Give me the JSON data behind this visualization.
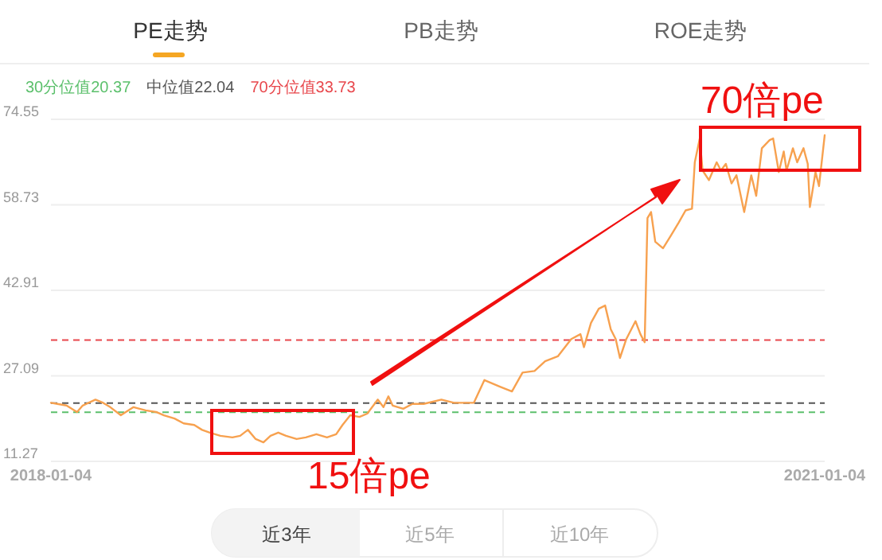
{
  "chart_data": {
    "type": "line",
    "x": [
      "2018-01-04",
      "2018-01-13",
      "2018-01-26",
      "2018-02-10",
      "2018-02-18",
      "2018-03-08",
      "2018-03-19",
      "2018-03-29",
      "2018-04-13",
      "2018-05-01",
      "2018-05-18",
      "2018-06-02",
      "2018-06-13",
      "2018-06-28",
      "2018-07-11",
      "2018-07-26",
      "2018-08-06",
      "2018-08-17",
      "2018-09-01",
      "2018-09-18",
      "2018-09-29",
      "2018-10-10",
      "2018-10-21",
      "2018-11-01",
      "2018-11-11",
      "2018-11-22",
      "2018-12-03",
      "2018-12-18",
      "2018-12-31",
      "2019-01-15",
      "2019-01-30",
      "2019-02-12",
      "2019-02-21",
      "2019-03-04",
      "2019-03-17",
      "2019-03-28",
      "2019-04-12",
      "2019-04-20",
      "2019-04-27",
      "2019-05-03",
      "2019-05-18",
      "2019-05-31",
      "2019-06-16",
      "2019-07-11",
      "2019-07-29",
      "2019-08-26",
      "2019-09-10",
      "2019-10-02",
      "2019-10-19",
      "2019-11-03",
      "2019-11-20",
      "2019-12-05",
      "2019-12-23",
      "2020-01-11",
      "2020-01-24",
      "2020-01-29",
      "2020-02-08",
      "2020-02-19",
      "2020-02-28",
      "2020-03-07",
      "2020-03-14",
      "2020-03-20",
      "2020-03-29",
      "2020-04-11",
      "2020-04-18",
      "2020-04-24",
      "2020-04-28",
      "2020-05-03",
      "2020-05-09",
      "2020-05-20",
      "2020-05-31",
      "2020-06-11",
      "2020-06-21",
      "2020-06-30",
      "2020-07-04",
      "2020-07-11",
      "2020-07-15",
      "2020-07-24",
      "2020-08-04",
      "2020-08-10",
      "2020-08-17",
      "2020-08-25",
      "2020-09-01",
      "2020-09-12",
      "2020-09-22",
      "2020-09-29",
      "2020-10-07",
      "2020-10-18",
      "2020-10-23",
      "2020-10-31",
      "2020-11-07",
      "2020-11-11",
      "2020-11-20",
      "2020-11-26",
      "2020-12-05",
      "2020-12-11",
      "2020-12-14",
      "2020-12-22",
      "2020-12-27",
      "2021-01-04"
    ],
    "series": [
      {
        "color": "#f7a14f",
        "values": [
          22.1,
          21.9,
          21.6,
          20.4,
          21.6,
          22.7,
          22.1,
          21.3,
          19.8,
          21.3,
          20.7,
          20.4,
          19.8,
          19.2,
          18.3,
          18.0,
          17.1,
          16.6,
          16.0,
          15.7,
          16.0,
          17.1,
          15.4,
          14.8,
          16.0,
          16.6,
          16.0,
          15.4,
          15.7,
          16.3,
          15.7,
          16.3,
          18.0,
          19.8,
          19.5,
          20.1,
          22.7,
          21.3,
          23.3,
          21.6,
          21.0,
          21.9,
          21.9,
          22.7,
          22.1,
          22.1,
          26.3,
          25.1,
          24.2,
          27.7,
          28.0,
          29.8,
          30.7,
          33.9,
          34.8,
          32.4,
          36.9,
          39.5,
          40.1,
          35.7,
          33.9,
          30.4,
          33.9,
          37.2,
          34.8,
          33.3,
          56.3,
          57.4,
          51.9,
          50.7,
          53.0,
          55.4,
          57.7,
          58.0,
          66.6,
          71.0,
          65.1,
          63.3,
          66.6,
          65.1,
          66.3,
          62.7,
          64.2,
          57.4,
          64.2,
          60.4,
          69.2,
          70.7,
          71.0,
          64.8,
          68.6,
          65.1,
          69.2,
          66.6,
          69.2,
          66.3,
          58.3,
          64.8,
          62.2,
          71.6
        ]
      }
    ],
    "xlim": [
      "2018-01-04",
      "2021-01-04"
    ],
    "xticks": [
      "2018-01-04",
      "2021-01-04"
    ],
    "ylim": [
      11.27,
      74.55
    ],
    "yticks": [
      11.27,
      27.09,
      42.91,
      58.73,
      74.55
    ],
    "grid": "y",
    "ref_lines": [
      {
        "axis": "y",
        "value": 20.37,
        "label": "30分位值20.37",
        "color": "#5cc06c",
        "line_style": "dashed"
      },
      {
        "axis": "y",
        "value": 22.04,
        "label": "中位值22.04",
        "color": "#555555",
        "line_style": "dashed"
      },
      {
        "axis": "y",
        "value": 33.73,
        "label": "70分位值33.73",
        "color": "#e8474c",
        "line_style": "dashed"
      }
    ],
    "annotations": [
      "PE走势",
      "PB走势",
      "ROE走势",
      "70倍pe",
      "15倍pe",
      "近3年",
      "近5年",
      "近10年"
    ]
  }
}
